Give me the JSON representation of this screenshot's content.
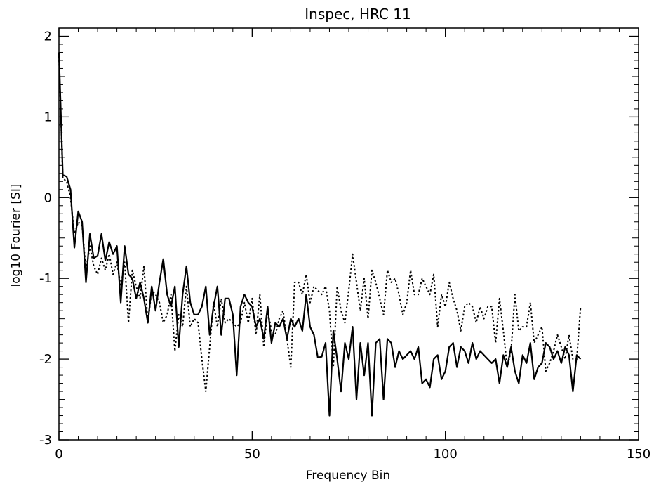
{
  "chart_data": {
    "type": "line",
    "title": "Inspec, HRC 11",
    "xlabel": "Frequency Bin",
    "ylabel": "log10 Fourier [SI]",
    "xlim": [
      0,
      150
    ],
    "ylim": [
      -3,
      2.1
    ],
    "x_ticks": [
      0,
      50,
      100,
      150
    ],
    "y_ticks": [
      -3,
      -2,
      -1,
      0,
      1,
      2
    ],
    "x_tick_labels": [
      "0",
      "50",
      "100",
      "150"
    ],
    "y_tick_labels": [
      "-3",
      "-2",
      "-1",
      "0",
      "1",
      "2"
    ],
    "grid": false,
    "legend": "none",
    "series": [
      {
        "style": "solid",
        "color": "#000000",
        "x": [
          0,
          1,
          2,
          3,
          4,
          5,
          6,
          7,
          8,
          9,
          10,
          11,
          12,
          13,
          14,
          15,
          16,
          17,
          18,
          19,
          20,
          21,
          22,
          23,
          24,
          25,
          26,
          27,
          28,
          29,
          30,
          31,
          32,
          33,
          34,
          35,
          36,
          37,
          38,
          39,
          40,
          41,
          42,
          43,
          44,
          45,
          46,
          47,
          48,
          49,
          50,
          51,
          52,
          53,
          54,
          55,
          56,
          57,
          58,
          59,
          60,
          61,
          62,
          63,
          64,
          65,
          66,
          67,
          68,
          69,
          70,
          71,
          72,
          73,
          74,
          75,
          76,
          77,
          78,
          79,
          80,
          81,
          82,
          83,
          84,
          85,
          86,
          87,
          88,
          89,
          90,
          91,
          92,
          93,
          94,
          95,
          96,
          97,
          98,
          99,
          100,
          101,
          102,
          103,
          104,
          105,
          106,
          107,
          108,
          109,
          110,
          111,
          112,
          113,
          114,
          115,
          116,
          117,
          118,
          119,
          120,
          121,
          122,
          123,
          124,
          125,
          126,
          127,
          128,
          129,
          130,
          131,
          132,
          133,
          134,
          135
        ],
        "y": [
          1.8,
          0.28,
          0.26,
          0.1,
          -0.62,
          -0.17,
          -0.3,
          -1.05,
          -0.45,
          -0.75,
          -0.72,
          -0.45,
          -0.78,
          -0.55,
          -0.7,
          -0.6,
          -1.3,
          -0.6,
          -0.95,
          -1.0,
          -1.25,
          -1.05,
          -1.25,
          -1.55,
          -1.1,
          -1.4,
          -1.05,
          -0.76,
          -1.2,
          -1.35,
          -1.1,
          -1.85,
          -1.2,
          -0.85,
          -1.3,
          -1.45,
          -1.45,
          -1.35,
          -1.1,
          -1.7,
          -1.35,
          -1.1,
          -1.7,
          -1.25,
          -1.25,
          -1.45,
          -2.2,
          -1.35,
          -1.2,
          -1.3,
          -1.35,
          -1.6,
          -1.5,
          -1.75,
          -1.35,
          -1.8,
          -1.55,
          -1.6,
          -1.5,
          -1.75,
          -1.5,
          -1.6,
          -1.5,
          -1.65,
          -1.2,
          -1.6,
          -1.7,
          -1.98,
          -1.97,
          -1.8,
          -2.7,
          -1.65,
          -2.0,
          -2.4,
          -1.8,
          -2.0,
          -1.6,
          -2.5,
          -1.8,
          -2.2,
          -1.8,
          -2.7,
          -1.8,
          -1.75,
          -2.5,
          -1.75,
          -1.8,
          -2.1,
          -1.9,
          -2.0,
          -1.95,
          -1.9,
          -2.0,
          -1.85,
          -2.3,
          -2.25,
          -2.35,
          -2.0,
          -1.95,
          -2.25,
          -2.15,
          -1.85,
          -1.8,
          -2.1,
          -1.85,
          -1.9,
          -2.05,
          -1.8,
          -2.0,
          -1.9,
          -1.95,
          -2.0,
          -2.05,
          -2.0,
          -2.3,
          -1.95,
          -2.1,
          -1.85,
          -2.15,
          -2.3,
          -1.95,
          -2.05,
          -1.8,
          -2.25,
          -2.1,
          -2.05,
          -1.8,
          -1.85,
          -2.0,
          -1.9,
          -2.05,
          -1.85,
          -1.95,
          -2.4,
          -1.95,
          -2.0
        ]
      },
      {
        "style": "dotted",
        "color": "#000000",
        "x": [
          0,
          1,
          2,
          3,
          4,
          5,
          6,
          7,
          8,
          9,
          10,
          11,
          12,
          13,
          14,
          15,
          16,
          17,
          18,
          19,
          20,
          21,
          22,
          23,
          24,
          25,
          26,
          27,
          28,
          29,
          30,
          31,
          32,
          33,
          34,
          35,
          36,
          37,
          38,
          39,
          40,
          41,
          42,
          43,
          44,
          45,
          46,
          47,
          48,
          49,
          50,
          51,
          52,
          53,
          54,
          55,
          56,
          57,
          58,
          59,
          60,
          61,
          62,
          63,
          64,
          65,
          66,
          67,
          68,
          69,
          70,
          71,
          72,
          73,
          74,
          75,
          76,
          77,
          78,
          79,
          80,
          81,
          82,
          83,
          84,
          85,
          86,
          87,
          88,
          89,
          90,
          91,
          92,
          93,
          94,
          95,
          96,
          97,
          98,
          99,
          100,
          101,
          102,
          103,
          104,
          105,
          106,
          107,
          108,
          109,
          110,
          111,
          112,
          113,
          114,
          115,
          116,
          117,
          118,
          119,
          120,
          121,
          122,
          123,
          124,
          125,
          126,
          127,
          128,
          129,
          130,
          131,
          132,
          133,
          134,
          135
        ],
        "y": [
          1.75,
          0.24,
          0.2,
          0.0,
          -0.45,
          -0.3,
          -0.35,
          -0.9,
          -0.6,
          -0.85,
          -0.95,
          -0.75,
          -0.9,
          -0.7,
          -0.95,
          -0.8,
          -1.1,
          -0.8,
          -1.55,
          -0.9,
          -1.1,
          -1.25,
          -0.85,
          -1.55,
          -1.15,
          -1.2,
          -1.3,
          -1.55,
          -1.45,
          -1.2,
          -1.9,
          -1.45,
          -1.6,
          -1.1,
          -1.6,
          -1.5,
          -1.55,
          -2.0,
          -2.4,
          -1.85,
          -1.3,
          -1.6,
          -1.25,
          -1.55,
          -1.5,
          -1.55,
          -1.6,
          -1.55,
          -1.3,
          -1.55,
          -1.25,
          -1.7,
          -1.2,
          -1.85,
          -1.4,
          -1.65,
          -1.7,
          -1.5,
          -1.4,
          -1.75,
          -2.1,
          -1.05,
          -1.05,
          -1.2,
          -0.95,
          -1.3,
          -1.1,
          -1.15,
          -1.2,
          -1.1,
          -1.4,
          -2.1,
          -1.1,
          -1.4,
          -1.55,
          -1.15,
          -0.7,
          -1.05,
          -1.4,
          -1.0,
          -1.5,
          -0.9,
          -1.05,
          -1.25,
          -1.45,
          -0.9,
          -1.05,
          -1.0,
          -1.2,
          -1.45,
          -1.3,
          -0.9,
          -1.2,
          -1.2,
          -1.0,
          -1.1,
          -1.2,
          -0.95,
          -1.6,
          -1.2,
          -1.35,
          -1.05,
          -1.25,
          -1.4,
          -1.65,
          -1.35,
          -1.3,
          -1.35,
          -1.55,
          -1.35,
          -1.5,
          -1.35,
          -1.35,
          -1.8,
          -1.25,
          -1.65,
          -2.1,
          -1.9,
          -1.2,
          -1.65,
          -1.6,
          -1.6,
          -1.3,
          -1.8,
          -1.7,
          -1.6,
          -2.15,
          -2.05,
          -1.9,
          -1.7,
          -1.85,
          -2.0,
          -1.7,
          -2.0,
          -2.0,
          -1.35
        ]
      }
    ]
  }
}
